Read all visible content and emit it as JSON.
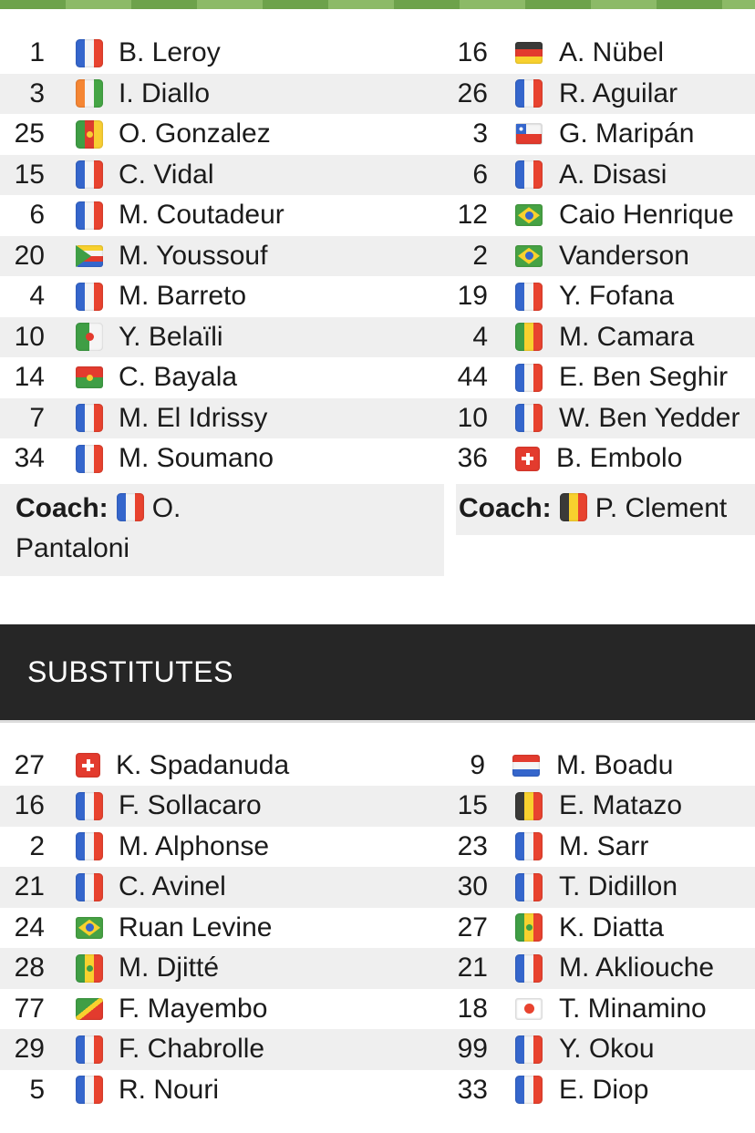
{
  "page": {
    "accent_bar_color_dark": "#6da24b",
    "accent_bar_color_light": "#8cba67",
    "row_stripe_color": "#efefef",
    "substitutes_bar_color": "#262626"
  },
  "starting_lineups": {
    "home": {
      "players": [
        {
          "number": "1",
          "flag": "fr",
          "name": "B. Leroy"
        },
        {
          "number": "3",
          "flag": "ci",
          "name": "I. Diallo"
        },
        {
          "number": "25",
          "flag": "cm",
          "name": "O. Gonzalez"
        },
        {
          "number": "15",
          "flag": "fr",
          "name": "C. Vidal"
        },
        {
          "number": "6",
          "flag": "fr",
          "name": "M. Coutadeur"
        },
        {
          "number": "20",
          "flag": "km",
          "name": "M. Youssouf"
        },
        {
          "number": "4",
          "flag": "fr",
          "name": "M. Barreto"
        },
        {
          "number": "10",
          "flag": "dz",
          "name": "Y. Belaïli"
        },
        {
          "number": "14",
          "flag": "bf",
          "name": "C. Bayala"
        },
        {
          "number": "7",
          "flag": "fr",
          "name": "M. El Idrissy"
        },
        {
          "number": "34",
          "flag": "fr",
          "name": "M. Soumano"
        }
      ],
      "coach": {
        "label": "Coach:",
        "flag": "fr",
        "name": "O. Pantaloni"
      }
    },
    "away": {
      "players": [
        {
          "number": "16",
          "flag": "de",
          "name": "A. Nübel"
        },
        {
          "number": "26",
          "flag": "fr",
          "name": "R. Aguilar"
        },
        {
          "number": "3",
          "flag": "cl",
          "name": "G. Maripán"
        },
        {
          "number": "6",
          "flag": "fr",
          "name": "A. Disasi"
        },
        {
          "number": "12",
          "flag": "br",
          "name": "Caio Henrique"
        },
        {
          "number": "2",
          "flag": "br",
          "name": "Vanderson"
        },
        {
          "number": "19",
          "flag": "fr",
          "name": "Y. Fofana"
        },
        {
          "number": "4",
          "flag": "ml",
          "name": "M. Camara"
        },
        {
          "number": "44",
          "flag": "fr",
          "name": "E. Ben Seghir"
        },
        {
          "number": "10",
          "flag": "fr",
          "name": "W. Ben Yedder"
        },
        {
          "number": "36",
          "flag": "ch",
          "name": "B. Embolo"
        }
      ],
      "coach": {
        "label": "Coach:",
        "flag": "be",
        "name": "P. Clement"
      }
    }
  },
  "substitutes": {
    "title": "SUBSTITUTES",
    "home": [
      {
        "number": "27",
        "flag": "ch",
        "name": "K. Spadanuda"
      },
      {
        "number": "16",
        "flag": "fr",
        "name": "F. Sollacaro"
      },
      {
        "number": "2",
        "flag": "fr",
        "name": "M. Alphonse"
      },
      {
        "number": "21",
        "flag": "fr",
        "name": "C. Avinel"
      },
      {
        "number": "24",
        "flag": "br",
        "name": "Ruan Levine"
      },
      {
        "number": "28",
        "flag": "sn",
        "name": "M. Djitté"
      },
      {
        "number": "77",
        "flag": "cg",
        "name": "F. Mayembo"
      },
      {
        "number": "29",
        "flag": "fr",
        "name": "F. Chabrolle"
      },
      {
        "number": "5",
        "flag": "fr",
        "name": "R. Nouri"
      }
    ],
    "away": [
      {
        "number": "9",
        "flag": "nl",
        "name": "M. Boadu"
      },
      {
        "number": "15",
        "flag": "be",
        "name": "E. Matazo"
      },
      {
        "number": "23",
        "flag": "fr",
        "name": "M. Sarr"
      },
      {
        "number": "30",
        "flag": "fr",
        "name": "T. Didillon"
      },
      {
        "number": "27",
        "flag": "sn",
        "name": "K. Diatta"
      },
      {
        "number": "21",
        "flag": "fr",
        "name": "M. Akliouche"
      },
      {
        "number": "18",
        "flag": "jp",
        "name": "T. Minamino"
      },
      {
        "number": "99",
        "flag": "fr",
        "name": "Y. Okou"
      },
      {
        "number": "33",
        "flag": "fr",
        "name": "E. Diop"
      }
    ]
  }
}
